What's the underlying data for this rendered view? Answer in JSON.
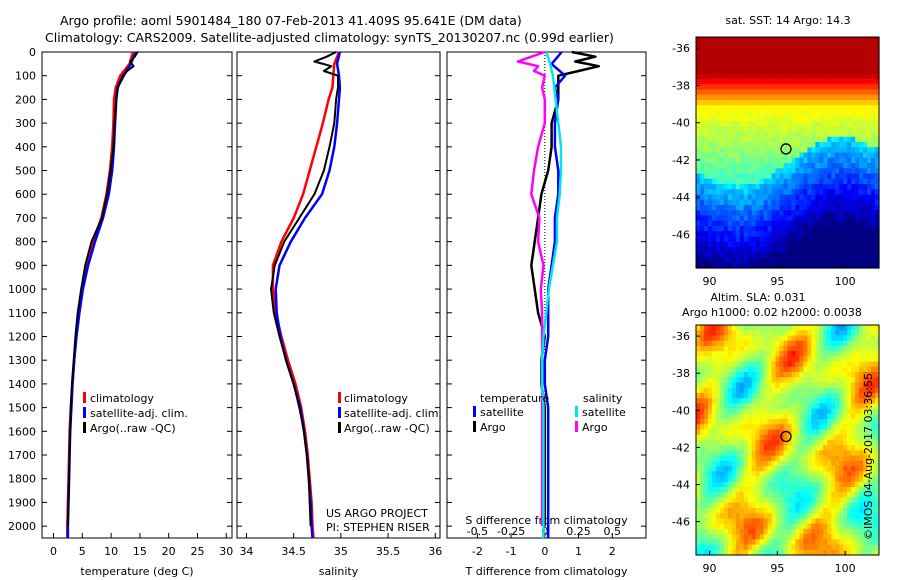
{
  "title_line1": "Argo profile: aoml 5901484_180 07-Feb-2013 41.409S 95.641E (DM data)",
  "title_line2": "Climatology: CARS2009. Satellite-adjusted climatology: synTS_20130207.nc (0.99d earlier)",
  "colors": {
    "climatology": "#ff0000",
    "satellite": "#0000ff",
    "argo": "#000000",
    "satellite_s": "#00e5e5",
    "argo_s": "#ff00ff"
  },
  "chart_data": [
    {
      "type": "line",
      "xlabel": "temperature (deg C)",
      "ylabel": "",
      "xlim": [
        -2,
        31
      ],
      "ylim": [
        2050,
        0
      ],
      "xticks": [
        0,
        5,
        10,
        15,
        20,
        25,
        30
      ],
      "yticks": [
        0,
        100,
        200,
        300,
        400,
        500,
        600,
        700,
        800,
        900,
        1000,
        1100,
        1200,
        1300,
        1400,
        1500,
        1600,
        1700,
        1800,
        1900,
        2000
      ],
      "legend": [
        "climatology",
        "satellite-adj. clim.",
        "Argo(..raw -QC)"
      ],
      "legend_placement": "lower-right",
      "series": [
        {
          "name": "climatology",
          "depth": [
            0,
            50,
            100,
            150,
            200,
            300,
            400,
            500,
            600,
            700,
            800,
            900,
            1000,
            1100,
            1200,
            1300,
            1400,
            1500,
            1600,
            1700,
            1800,
            1900,
            2000,
            2050
          ],
          "values": [
            13.8,
            13.2,
            11.6,
            10.8,
            10.5,
            10.4,
            10.2,
            9.8,
            9.2,
            8.3,
            6.9,
            5.8,
            5.0,
            4.4,
            3.9,
            3.6,
            3.3,
            3.0,
            2.8,
            2.7,
            2.6,
            2.5,
            2.4,
            2.4
          ]
        },
        {
          "name": "satellite-adj. clim.",
          "depth": [
            0,
            50,
            100,
            150,
            200,
            300,
            400,
            500,
            600,
            700,
            800,
            900,
            1000,
            1100,
            1200,
            1300,
            1400,
            1500,
            1600,
            1700,
            1800,
            1900,
            2000,
            2050
          ],
          "values": [
            14.3,
            13.4,
            12.2,
            11.1,
            10.9,
            10.7,
            10.5,
            10.2,
            9.6,
            8.6,
            7.2,
            6.0,
            5.1,
            4.5,
            4.0,
            3.6,
            3.3,
            3.1,
            2.9,
            2.8,
            2.7,
            2.6,
            2.5,
            2.5
          ]
        },
        {
          "name": "Argo(..raw -QC)",
          "depth": [
            0,
            20,
            40,
            60,
            80,
            100,
            150,
            200,
            300,
            400,
            500,
            600,
            700,
            800,
            900,
            1000,
            1100,
            1200,
            1300,
            1400,
            1500,
            1600,
            1700,
            1800,
            1900,
            2000
          ],
          "values": [
            14.6,
            14.1,
            13.3,
            13.9,
            12.8,
            12.0,
            11.2,
            10.9,
            10.6,
            10.4,
            9.9,
            9.3,
            8.4,
            6.6,
            5.5,
            4.8,
            4.2,
            3.8,
            3.5,
            3.2,
            3.0,
            2.9,
            2.8,
            2.7,
            2.6,
            2.5
          ]
        }
      ]
    },
    {
      "type": "line",
      "xlabel": "salinity",
      "xlim": [
        33.9,
        36.05
      ],
      "ylim": [
        2050,
        0
      ],
      "xticks": [
        34,
        34.5,
        35,
        35.5,
        36
      ],
      "legend": [
        "climatology",
        "satellite-adj. clim.",
        "Argo(..raw -QC)"
      ],
      "legend_placement": "lower-right",
      "annotation": [
        "US ARGO PROJECT",
        "PI: STEPHEN RISER"
      ],
      "series": [
        {
          "name": "climatology",
          "depth": [
            0,
            50,
            100,
            150,
            200,
            300,
            400,
            500,
            600,
            700,
            800,
            900,
            1000,
            1100,
            1200,
            1300,
            1400,
            1500,
            1600,
            1700,
            1800,
            1900,
            2000,
            2050
          ],
          "values": [
            34.98,
            34.93,
            34.92,
            34.91,
            34.87,
            34.81,
            34.74,
            34.67,
            34.6,
            34.5,
            34.37,
            34.28,
            34.28,
            34.31,
            34.37,
            34.44,
            34.52,
            34.58,
            34.62,
            34.65,
            34.67,
            34.69,
            34.7,
            34.71
          ]
        },
        {
          "name": "satellite-adj. clim.",
          "depth": [
            0,
            50,
            100,
            150,
            200,
            300,
            400,
            500,
            600,
            700,
            800,
            900,
            1000,
            1100,
            1200,
            1300,
            1400,
            1500,
            1600,
            1700,
            1800,
            1900,
            2000,
            2050
          ],
          "values": [
            34.99,
            34.96,
            34.98,
            34.99,
            34.98,
            34.96,
            34.93,
            34.88,
            34.8,
            34.62,
            34.47,
            34.35,
            34.31,
            34.32,
            34.36,
            34.42,
            34.5,
            34.57,
            34.61,
            34.64,
            34.66,
            34.68,
            34.69,
            34.7
          ]
        },
        {
          "name": "Argo(..raw -QC)",
          "depth": [
            0,
            20,
            40,
            60,
            80,
            100,
            150,
            200,
            300,
            400,
            500,
            600,
            700,
            800,
            900,
            1000,
            1100,
            1200,
            1300,
            1400,
            1500,
            1600,
            1700,
            1800,
            1900,
            2000
          ],
          "values": [
            34.95,
            34.85,
            34.72,
            34.9,
            34.82,
            34.97,
            34.97,
            34.95,
            34.93,
            34.88,
            34.82,
            34.72,
            34.56,
            34.4,
            34.3,
            34.26,
            34.29,
            34.35,
            34.42,
            34.5,
            34.56,
            34.61,
            34.64,
            34.66,
            34.67,
            34.68
          ]
        }
      ]
    },
    {
      "type": "line",
      "xlabel": "T difference from climatology",
      "xlabel_top": "S difference from climatology",
      "xlim": [
        -2.9,
        3
      ],
      "ylim": [
        2050,
        0
      ],
      "xticks": [
        -2,
        -1,
        0,
        1,
        2
      ],
      "xticks_top": [
        -0.5,
        -0.25,
        0,
        0.25,
        0.5
      ],
      "legend_title_left": "temperature",
      "legend_title_right": "salinity",
      "legend": [
        "satellite",
        "Argo",
        "satellite",
        "Argo"
      ],
      "legend_placement": "lower-center",
      "series": [
        {
          "name": "satellite",
          "group": "temperature",
          "depth": [
            0,
            50,
            100,
            150,
            200,
            300,
            400,
            500,
            600,
            700,
            800,
            900,
            1000,
            1100,
            1200,
            1300,
            1400,
            1500,
            1600,
            1700,
            1800,
            1900,
            2000,
            2050
          ],
          "values": [
            0.5,
            0.2,
            0.6,
            0.3,
            0.4,
            0.3,
            0.3,
            0.4,
            0.4,
            0.3,
            0.3,
            0.2,
            0.1,
            0.1,
            0.1,
            0.0,
            0.0,
            0.1,
            0.1,
            0.1,
            0.1,
            0.1,
            0.1,
            0.1
          ]
        },
        {
          "name": "Argo",
          "group": "temperature",
          "depth": [
            0,
            20,
            40,
            60,
            80,
            100,
            150,
            200,
            300,
            400,
            500,
            600,
            700,
            800,
            900,
            1000,
            1100,
            1200,
            1300,
            1400,
            1500,
            1600,
            1700,
            1800,
            1900,
            2000
          ],
          "values": [
            0.8,
            1.5,
            0.9,
            1.6,
            1.0,
            0.4,
            0.4,
            0.4,
            0.2,
            0.2,
            0.1,
            -0.1,
            -0.2,
            -0.3,
            -0.4,
            -0.3,
            -0.2,
            0.0,
            -0.1,
            -0.1,
            0.0,
            0.0,
            0.0,
            0.0,
            0.0,
            0.0
          ]
        },
        {
          "name": "satellite",
          "group": "salinity",
          "depth": [
            0,
            50,
            100,
            150,
            200,
            300,
            400,
            500,
            600,
            700,
            800,
            900,
            1000,
            1100,
            1200,
            1300,
            1400,
            1500,
            1600,
            1700,
            1800,
            1900,
            2000,
            2050
          ],
          "values": [
            0.01,
            0.04,
            0.06,
            0.07,
            0.08,
            0.1,
            0.12,
            0.12,
            0.11,
            0.09,
            0.09,
            0.06,
            0.03,
            0.01,
            -0.01,
            -0.02,
            -0.02,
            -0.01,
            -0.01,
            -0.01,
            -0.01,
            -0.01,
            -0.01,
            -0.01
          ]
        },
        {
          "name": "Argo",
          "group": "salinity",
          "depth": [
            0,
            20,
            40,
            60,
            80,
            100,
            150,
            200,
            300,
            400,
            500,
            600,
            700,
            800,
            900,
            1000,
            1100,
            1200,
            1300,
            1400,
            1500,
            1600,
            1700,
            1800,
            1900,
            2000
          ],
          "values": [
            0.0,
            -0.1,
            -0.2,
            -0.05,
            -0.08,
            0.0,
            -0.02,
            0.0,
            0.0,
            -0.05,
            -0.08,
            -0.1,
            -0.04,
            -0.05,
            -0.01,
            -0.03,
            -0.02,
            -0.02,
            -0.02,
            -0.02,
            -0.02,
            -0.02,
            -0.02,
            -0.02,
            -0.02,
            -0.02
          ]
        }
      ]
    },
    {
      "type": "heatmap",
      "title": "sat. SST: 14 Argo: 14.3",
      "xlim": [
        89,
        102.5
      ],
      "ylim": [
        -47.8,
        -35.4
      ],
      "xticks": [
        90,
        95,
        100
      ],
      "yticks": [
        -36,
        -38,
        -40,
        -42,
        -44,
        -46
      ],
      "marker": {
        "lon": 95.64,
        "lat": -41.41
      },
      "colormap": "jet",
      "description_rows": [
        "warm-north",
        "cool-south"
      ]
    },
    {
      "type": "heatmap",
      "title_lines": [
        "Altim. SLA: 0.031",
        "Argo h1000: 0.02 h2000: 0.0038"
      ],
      "xlim": [
        89,
        102.5
      ],
      "ylim": [
        -47.8,
        -35.4
      ],
      "xticks": [
        90,
        95,
        100
      ],
      "yticks": [
        -36,
        -38,
        -40,
        -42,
        -44,
        -46
      ],
      "marker": {
        "lon": 95.64,
        "lat": -41.41
      },
      "colormap": "jet"
    }
  ],
  "footer": "©IMOS 04-Aug-2017 03:36:55"
}
